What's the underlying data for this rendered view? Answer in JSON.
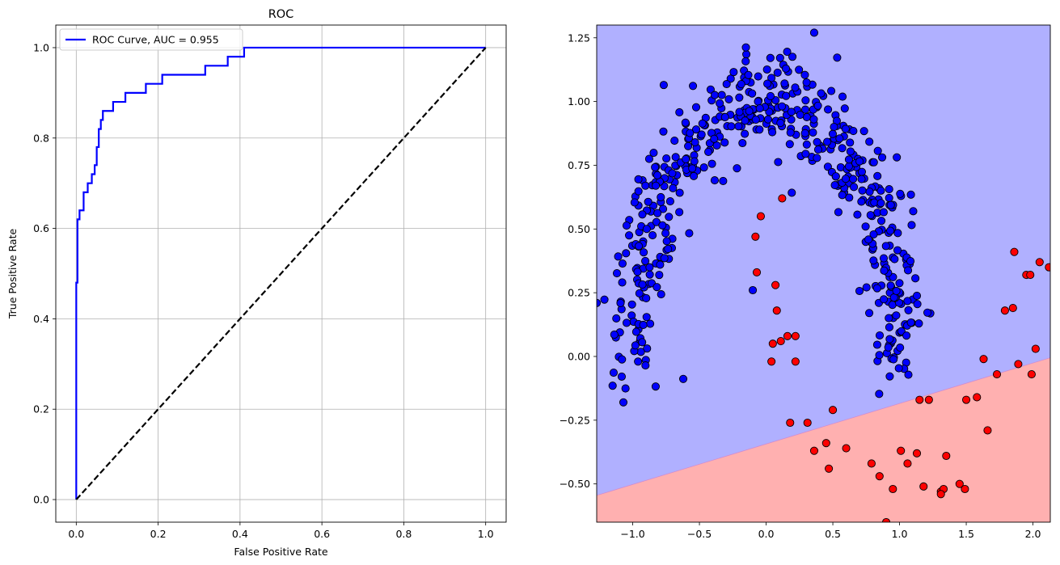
{
  "chart_data": [
    {
      "type": "line",
      "title": "ROC",
      "xlabel": "False Positive Rate",
      "ylabel": "True Positive Rate",
      "xlim": [
        -0.05,
        1.05
      ],
      "ylim": [
        -0.05,
        1.05
      ],
      "xticks": [
        "0.0",
        "0.2",
        "0.4",
        "0.6",
        "0.8",
        "1.0"
      ],
      "yticks": [
        "0.0",
        "0.2",
        "0.4",
        "0.6",
        "0.8",
        "1.0"
      ],
      "grid": true,
      "legend_position": "upper-left",
      "series": [
        {
          "name": "ROC Curve, AUC = 0.955",
          "color": "#0000ff",
          "x": [
            0,
            0,
            0.003,
            0.003,
            0.008,
            0.008,
            0.018,
            0.018,
            0.028,
            0.028,
            0.038,
            0.038,
            0.045,
            0.045,
            0.05,
            0.05,
            0.055,
            0.055,
            0.06,
            0.06,
            0.065,
            0.065,
            0.068,
            0.068,
            0.09,
            0.09,
            0.12,
            0.12,
            0.17,
            0.17,
            0.21,
            0.21,
            0.315,
            0.315,
            0.37,
            0.37,
            0.41,
            0.41,
            1.0
          ],
          "y": [
            0,
            0.48,
            0.48,
            0.62,
            0.62,
            0.64,
            0.64,
            0.68,
            0.68,
            0.7,
            0.7,
            0.72,
            0.72,
            0.74,
            0.74,
            0.78,
            0.78,
            0.82,
            0.82,
            0.84,
            0.84,
            0.86,
            0.86,
            0.86,
            0.86,
            0.88,
            0.88,
            0.9,
            0.9,
            0.92,
            0.92,
            0.94,
            0.94,
            0.96,
            0.96,
            0.98,
            0.98,
            1.0,
            1.0
          ]
        },
        {
          "name": "",
          "color": "#000000",
          "dashed": true,
          "x": [
            0,
            1
          ],
          "y": [
            0,
            1
          ]
        }
      ]
    },
    {
      "type": "scatter",
      "title": "",
      "xlabel": "",
      "ylabel": "",
      "xlim": [
        -1.27,
        2.13
      ],
      "ylim": [
        -0.65,
        1.3
      ],
      "xticks": [
        "−1.0",
        "−0.5",
        "0.0",
        "0.5",
        "1.0",
        "1.5",
        "2.0"
      ],
      "yticks": [
        "−0.50",
        "−0.25",
        "0.00",
        "0.25",
        "0.50",
        "0.75",
        "1.00",
        "1.25"
      ],
      "grid": false,
      "decision_boundary": {
        "x": [
          -1.27,
          2.13
        ],
        "y": [
          -0.545,
          -0.005
        ],
        "upper_region_color": "#b0b0ff",
        "lower_region_color": "#ffb0b0"
      },
      "series": [
        {
          "name": "",
          "color": "#0000ff",
          "generator": "upper-moon",
          "count": 520,
          "noise": 0.1,
          "seed": 7,
          "note_points_extra_x": [
            -1.27,
            -1.07,
            -0.96,
            0.36,
            -0.05,
            -0.1
          ],
          "note_points_extra_y": [
            0.21,
            -0.18,
            -0.02,
            1.27,
            0.89,
            0.26
          ]
        },
        {
          "name": "",
          "color": "#ff0000",
          "x": [
            -0.08,
            -0.07,
            -0.04,
            0.05,
            0.07,
            0.08,
            0.12,
            0.11,
            0.16,
            0.22,
            0.22,
            0.04,
            0.18,
            0.31,
            0.36,
            0.45,
            0.47,
            0.5,
            0.6,
            0.79,
            0.85,
            0.9,
            0.95,
            1.01,
            1.06,
            1.13,
            1.18,
            1.22,
            1.31,
            1.33,
            1.35,
            1.45,
            1.49,
            1.5,
            1.58,
            1.63,
            1.73,
            1.79,
            1.85,
            1.86,
            1.89,
            1.95,
            1.98,
            1.99,
            2.02,
            2.05,
            2.12,
            1.66,
            1.15,
            1.31
          ],
          "y": [
            0.47,
            0.33,
            0.55,
            0.05,
            0.28,
            0.18,
            0.62,
            0.06,
            0.08,
            0.08,
            -0.02,
            -0.02,
            -0.26,
            -0.26,
            -0.37,
            -0.34,
            -0.44,
            -0.21,
            -0.36,
            -0.42,
            -0.47,
            -0.65,
            -0.52,
            -0.37,
            -0.42,
            -0.38,
            -0.51,
            -0.17,
            -0.53,
            -0.52,
            -0.39,
            -0.5,
            -0.52,
            -0.17,
            -0.16,
            -0.01,
            -0.07,
            0.18,
            0.19,
            0.41,
            -0.03,
            0.32,
            0.32,
            -0.07,
            0.03,
            0.37,
            0.35,
            -0.29,
            -0.17,
            -0.54
          ]
        }
      ]
    }
  ]
}
